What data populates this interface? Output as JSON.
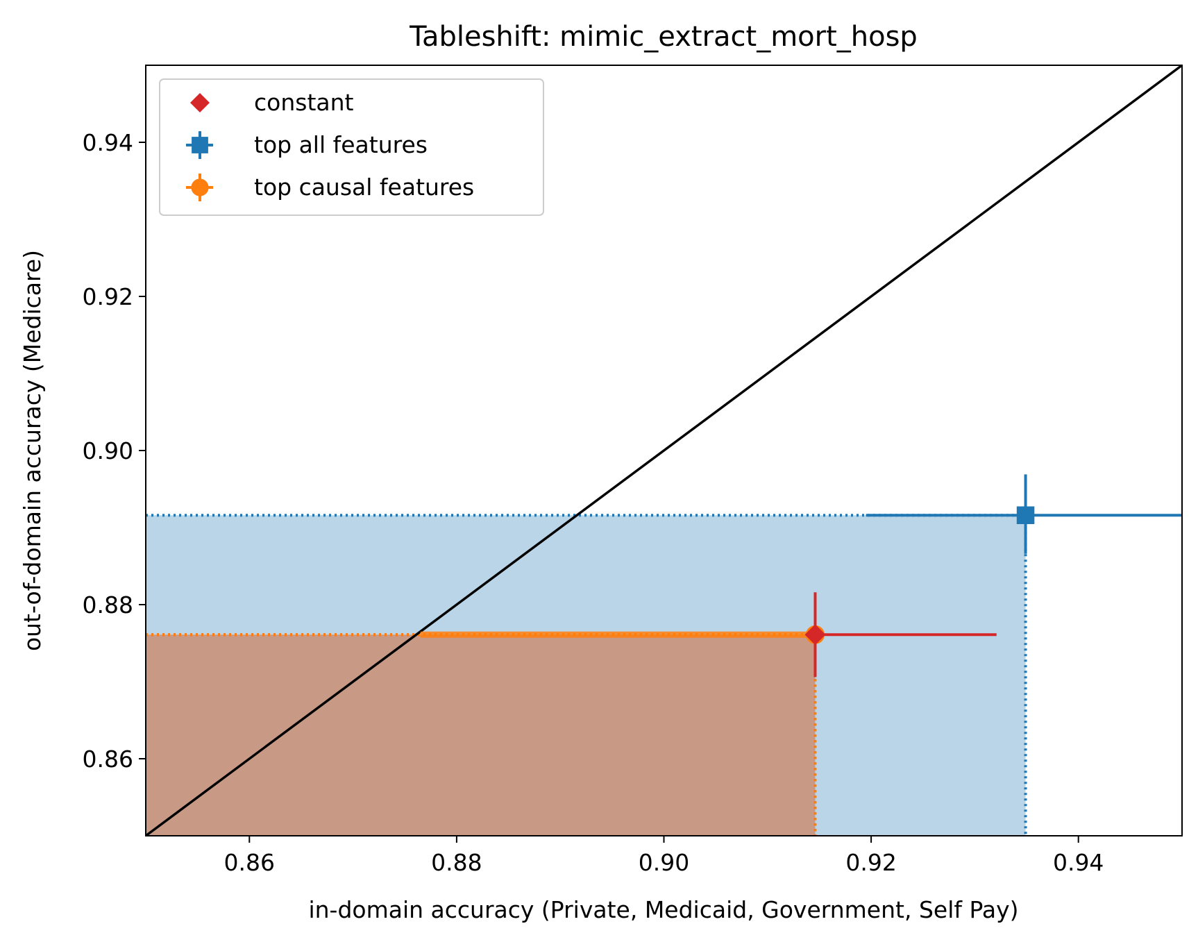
{
  "chart_data": {
    "type": "scatter",
    "title": "Tableshift: mimic_extract_mort_hosp",
    "xlabel": "in-domain accuracy (Private, Medicaid, Government, Self Pay)",
    "ylabel": "out-of-domain accuracy (Medicare)",
    "xlim": [
      0.85,
      0.95
    ],
    "ylim": [
      0.85,
      0.95
    ],
    "xticks": [
      "0.86",
      "0.88",
      "0.90",
      "0.92",
      "0.94"
    ],
    "yticks": [
      "0.86",
      "0.88",
      "0.90",
      "0.92",
      "0.94"
    ],
    "legend_position": "upper-left",
    "diagonal": "y = x",
    "series": [
      {
        "name": "constant",
        "marker": "diamond",
        "color": "#d62728",
        "x": 0.9146,
        "y": 0.8761,
        "xerr": [
          0.9146,
          0.9321
        ],
        "yerr": [
          0.8706,
          0.8816
        ],
        "shaded_region": false,
        "guide_lines": true
      },
      {
        "name": "top all features",
        "marker": "square",
        "color": "#1f77b4",
        "fill_color": "#bad5e8",
        "x": 0.9349,
        "y": 0.8916,
        "xerr": [
          0.9195,
          0.9502
        ],
        "yerr": [
          0.8866,
          0.8969
        ],
        "shaded_region": true,
        "guide_lines": true
      },
      {
        "name": "top causal features",
        "marker": "circle",
        "color": "#ff7f0e",
        "fill_color": "#c89a86",
        "x": 0.9146,
        "y": 0.8761,
        "xerr": [
          0.8765,
          0.9146
        ],
        "yerr": [
          0.8759,
          0.8765
        ],
        "shaded_region": true,
        "guide_lines": true
      }
    ]
  }
}
